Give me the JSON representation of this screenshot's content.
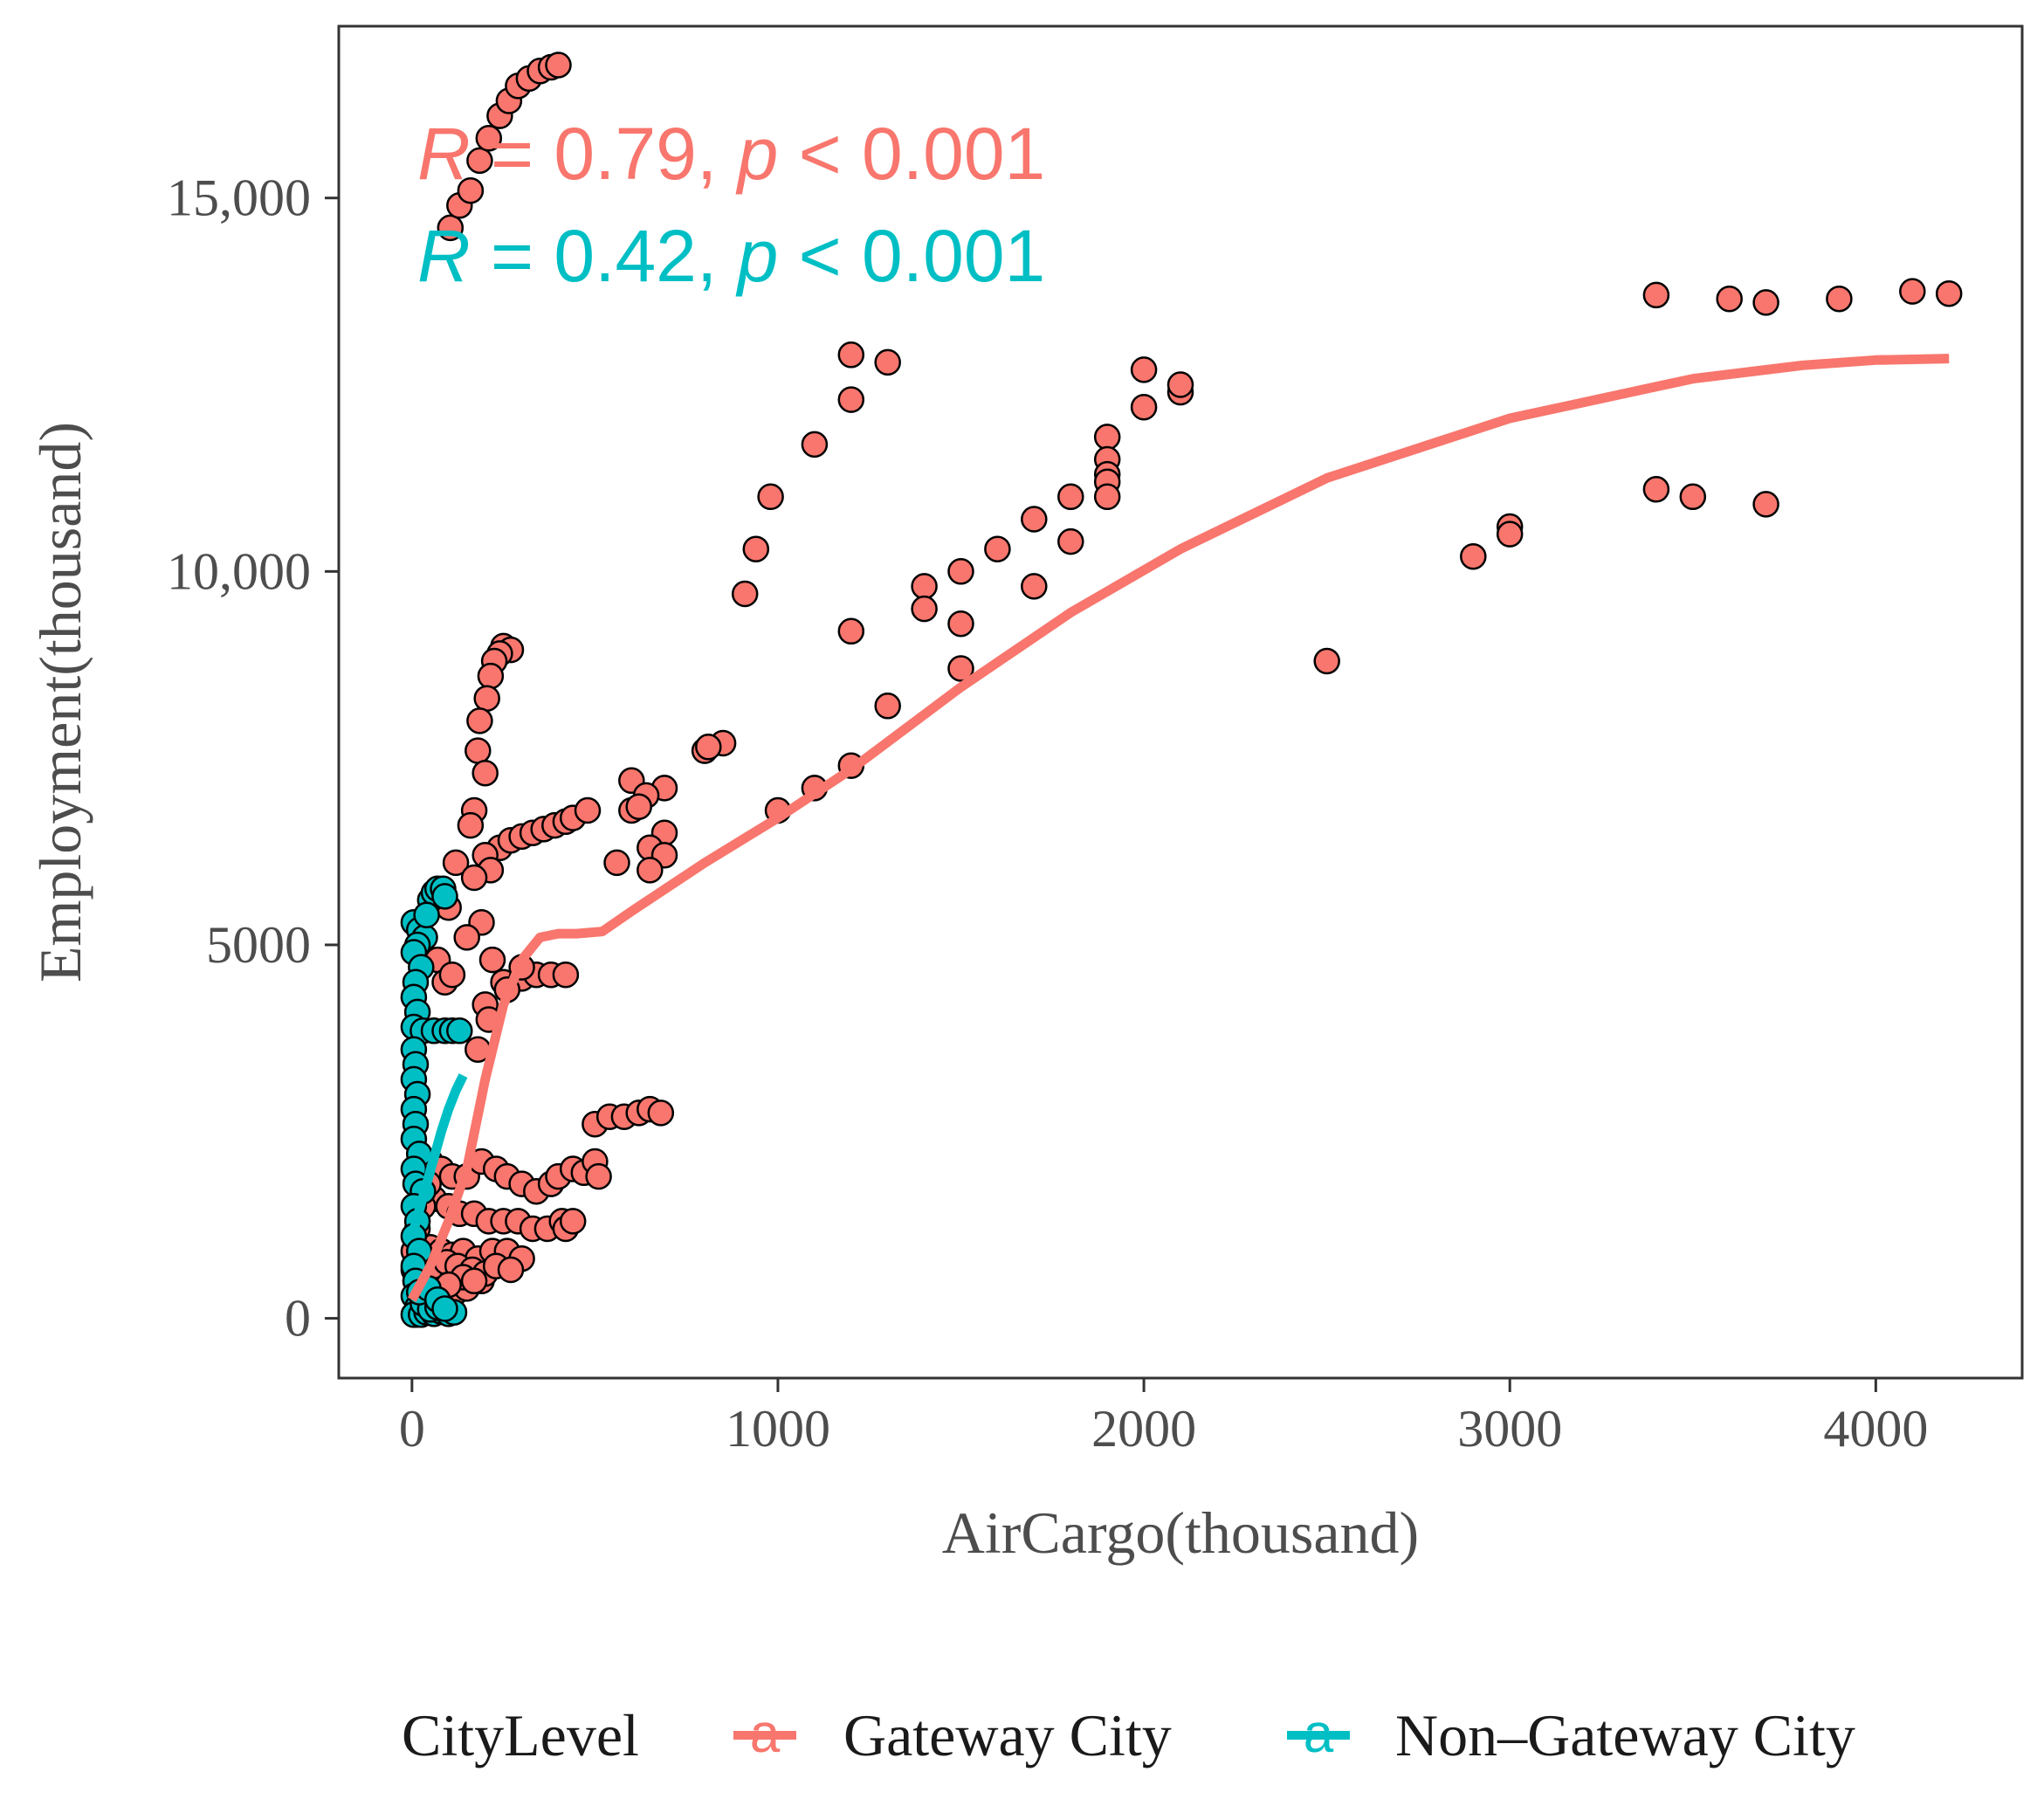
{
  "chart_data": {
    "type": "scatter",
    "title": "",
    "xlabel": "AirCargo(thousand)",
    "ylabel": "Employment(thousand)",
    "xlim": [
      -200,
      4400
    ],
    "ylim": [
      -800,
      17300
    ],
    "xticks": [
      0,
      1000,
      2000,
      3000,
      4000
    ],
    "xtick_labels": [
      "0",
      "1000",
      "2000",
      "3000",
      "4000"
    ],
    "yticks": [
      0,
      5000,
      10000,
      15000
    ],
    "ytick_labels": [
      "0",
      "5000",
      "10,000",
      "15,000"
    ],
    "grid": false,
    "legend": {
      "title": "CityLevel",
      "position": "bottom",
      "entries": [
        "Gateway City",
        "Non–Gateway City"
      ],
      "key_glyph": "a"
    },
    "stats": [
      {
        "series": "Gateway City",
        "R": "0.79",
        "p": "< 0.001",
        "R_symbol": "R",
        "p_symbol": "p",
        "eq": " = ",
        "sep": ", ",
        "color": "#F8766D"
      },
      {
        "series": "Non–Gateway City",
        "R": "0.42",
        "p": "< 0.001",
        "R_symbol": "R",
        "p_symbol": "p",
        "eq": " = ",
        "sep": ", ",
        "color": "#00BFC4"
      }
    ],
    "series": [
      {
        "name": "Gateway City",
        "color": "#F8766D",
        "points": [
          [
            105,
            14600
          ],
          [
            130,
            14900
          ],
          [
            160,
            15100
          ],
          [
            185,
            15500
          ],
          [
            210,
            15800
          ],
          [
            240,
            16100
          ],
          [
            265,
            16300
          ],
          [
            290,
            16500
          ],
          [
            320,
            16600
          ],
          [
            350,
            16700
          ],
          [
            380,
            16750
          ],
          [
            400,
            16780
          ],
          [
            3400,
            13700
          ],
          [
            3600,
            13650
          ],
          [
            3700,
            13600
          ],
          [
            3900,
            13650
          ],
          [
            4100,
            13750
          ],
          [
            4200,
            13720
          ],
          [
            1200,
            12900
          ],
          [
            1300,
            12800
          ],
          [
            1200,
            12300
          ],
          [
            1100,
            11700
          ],
          [
            980,
            11000
          ],
          [
            940,
            10300
          ],
          [
            910,
            9700
          ],
          [
            2000,
            12700
          ],
          [
            2000,
            12200
          ],
          [
            2100,
            12400
          ],
          [
            2100,
            12500
          ],
          [
            1900,
            11800
          ],
          [
            1900,
            11500
          ],
          [
            1900,
            11300
          ],
          [
            1900,
            11200
          ],
          [
            1900,
            11000
          ],
          [
            1800,
            11000
          ],
          [
            1700,
            10700
          ],
          [
            1800,
            10400
          ],
          [
            1600,
            10300
          ],
          [
            1500,
            10000
          ],
          [
            1700,
            9800
          ],
          [
            1400,
            9800
          ],
          [
            1400,
            9500
          ],
          [
            1500,
            9300
          ],
          [
            1200,
            9200
          ],
          [
            1500,
            8700
          ],
          [
            1300,
            8200
          ],
          [
            3400,
            11100
          ],
          [
            3500,
            11000
          ],
          [
            3700,
            10900
          ],
          [
            2900,
            10200
          ],
          [
            3000,
            10600
          ],
          [
            3000,
            10500
          ],
          [
            2500,
            8800
          ],
          [
            250,
            9000
          ],
          [
            270,
            8950
          ],
          [
            240,
            8900
          ],
          [
            225,
            8800
          ],
          [
            215,
            8600
          ],
          [
            205,
            8300
          ],
          [
            185,
            8000
          ],
          [
            180,
            7600
          ],
          [
            200,
            7300
          ],
          [
            800,
            7600
          ],
          [
            850,
            7700
          ],
          [
            810,
            7650
          ],
          [
            1200,
            7400
          ],
          [
            1100,
            7100
          ],
          [
            1000,
            6800
          ],
          [
            600,
            7200
          ],
          [
            690,
            7100
          ],
          [
            640,
            7000
          ],
          [
            600,
            6800
          ],
          [
            620,
            6850
          ],
          [
            690,
            6500
          ],
          [
            650,
            6300
          ],
          [
            690,
            6200
          ],
          [
            560,
            6100
          ],
          [
            650,
            6000
          ],
          [
            240,
            6300
          ],
          [
            270,
            6400
          ],
          [
            300,
            6450
          ],
          [
            330,
            6500
          ],
          [
            360,
            6550
          ],
          [
            390,
            6600
          ],
          [
            420,
            6650
          ],
          [
            440,
            6700
          ],
          [
            480,
            6800
          ],
          [
            170,
            6800
          ],
          [
            160,
            6600
          ],
          [
            200,
            6200
          ],
          [
            215,
            6000
          ],
          [
            120,
            6100
          ],
          [
            170,
            5900
          ],
          [
            100,
            5500
          ],
          [
            190,
            5300
          ],
          [
            150,
            5100
          ],
          [
            220,
            4800
          ],
          [
            250,
            4500
          ],
          [
            300,
            4550
          ],
          [
            340,
            4600
          ],
          [
            380,
            4600
          ],
          [
            420,
            4600
          ],
          [
            260,
            4400
          ],
          [
            300,
            4700
          ],
          [
            70,
            4800
          ],
          [
            90,
            4500
          ],
          [
            110,
            4600
          ],
          [
            200,
            4200
          ],
          [
            210,
            4000
          ],
          [
            180,
            3600
          ],
          [
            500,
            2600
          ],
          [
            540,
            2700
          ],
          [
            580,
            2700
          ],
          [
            620,
            2750
          ],
          [
            650,
            2800
          ],
          [
            680,
            2750
          ],
          [
            50,
            2100
          ],
          [
            80,
            2000
          ],
          [
            110,
            1900
          ],
          [
            150,
            1900
          ],
          [
            190,
            2100
          ],
          [
            230,
            2000
          ],
          [
            260,
            1900
          ],
          [
            300,
            1800
          ],
          [
            340,
            1700
          ],
          [
            380,
            1800
          ],
          [
            400,
            1900
          ],
          [
            440,
            2000
          ],
          [
            470,
            1950
          ],
          [
            500,
            2100
          ],
          [
            510,
            1900
          ],
          [
            60,
            1600
          ],
          [
            100,
            1500
          ],
          [
            130,
            1400
          ],
          [
            170,
            1400
          ],
          [
            210,
            1300
          ],
          [
            250,
            1300
          ],
          [
            290,
            1300
          ],
          [
            330,
            1200
          ],
          [
            370,
            1200
          ],
          [
            410,
            1300
          ],
          [
            420,
            1200
          ],
          [
            440,
            1300
          ],
          [
            20,
            1000
          ],
          [
            50,
            950
          ],
          [
            80,
            900
          ],
          [
            110,
            850
          ],
          [
            140,
            900
          ],
          [
            180,
            800
          ],
          [
            220,
            900
          ],
          [
            260,
            900
          ],
          [
            300,
            800
          ],
          [
            10,
            500
          ],
          [
            30,
            400
          ],
          [
            60,
            350
          ],
          [
            90,
            300
          ],
          [
            120,
            350
          ],
          [
            150,
            400
          ],
          [
            190,
            500
          ],
          [
            80,
            600
          ],
          [
            20,
            200
          ],
          [
            10,
            50
          ],
          [
            40,
            100
          ],
          [
            60,
            700
          ],
          [
            95,
            750
          ],
          [
            125,
            700
          ],
          [
            165,
            650
          ],
          [
            200,
            600
          ],
          [
            140,
            550
          ],
          [
            230,
            700
          ],
          [
            270,
            650
          ],
          [
            170,
            500
          ],
          [
            100,
            450
          ],
          [
            50,
            250
          ],
          [
            30,
            150
          ],
          [
            5,
            650
          ],
          [
            5,
            900
          ],
          [
            15,
            1200
          ],
          [
            30,
            1500
          ],
          [
            45,
            1800
          ]
        ]
      },
      {
        "name": "Non–Gateway City",
        "color": "#00BFC4",
        "points": [
          [
            5,
            5300
          ],
          [
            20,
            5200
          ],
          [
            35,
            5100
          ],
          [
            50,
            5600
          ],
          [
            60,
            5700
          ],
          [
            70,
            5750
          ],
          [
            85,
            5750
          ],
          [
            90,
            5650
          ],
          [
            40,
            5400
          ],
          [
            15,
            5000
          ],
          [
            5,
            4900
          ],
          [
            25,
            4700
          ],
          [
            10,
            4500
          ],
          [
            5,
            4300
          ],
          [
            15,
            4100
          ],
          [
            5,
            3900
          ],
          [
            30,
            3850
          ],
          [
            60,
            3850
          ],
          [
            90,
            3850
          ],
          [
            110,
            3850
          ],
          [
            130,
            3850
          ],
          [
            5,
            3600
          ],
          [
            10,
            3400
          ],
          [
            5,
            3200
          ],
          [
            15,
            3000
          ],
          [
            5,
            2800
          ],
          [
            10,
            2600
          ],
          [
            5,
            2400
          ],
          [
            20,
            2200
          ],
          [
            5,
            2000
          ],
          [
            10,
            1800
          ],
          [
            30,
            1700
          ],
          [
            5,
            1500
          ],
          [
            15,
            1300
          ],
          [
            5,
            1100
          ],
          [
            20,
            900
          ],
          [
            5,
            700
          ],
          [
            10,
            500
          ],
          [
            5,
            300
          ],
          [
            15,
            150
          ],
          [
            5,
            50
          ],
          [
            25,
            50
          ],
          [
            40,
            80
          ],
          [
            60,
            60
          ],
          [
            80,
            90
          ],
          [
            100,
            60
          ],
          [
            115,
            80
          ],
          [
            30,
            200
          ],
          [
            50,
            120
          ],
          [
            70,
            150
          ],
          [
            20,
            350
          ],
          [
            45,
            400
          ],
          [
            70,
            250
          ],
          [
            90,
            130
          ]
        ]
      }
    ],
    "smooth_lines": [
      {
        "series": "Gateway City",
        "color": "#F8766D",
        "points": [
          [
            0,
            250
          ],
          [
            50,
            700
          ],
          [
            100,
            1300
          ],
          [
            150,
            2000
          ],
          [
            200,
            3200
          ],
          [
            250,
            4200
          ],
          [
            300,
            4800
          ],
          [
            350,
            5100
          ],
          [
            400,
            5150
          ],
          [
            450,
            5150
          ],
          [
            520,
            5180
          ],
          [
            600,
            5450
          ],
          [
            800,
            6100
          ],
          [
            1000,
            6700
          ],
          [
            1200,
            7350
          ],
          [
            1500,
            8450
          ],
          [
            1800,
            9450
          ],
          [
            2100,
            10300
          ],
          [
            2500,
            11250
          ],
          [
            3000,
            12050
          ],
          [
            3500,
            12580
          ],
          [
            3800,
            12760
          ],
          [
            4000,
            12830
          ],
          [
            4200,
            12850
          ]
        ]
      },
      {
        "series": "Non–Gateway City",
        "color": "#00BFC4",
        "points": [
          [
            0,
            1100
          ],
          [
            20,
            1450
          ],
          [
            40,
            1800
          ],
          [
            60,
            2150
          ],
          [
            80,
            2500
          ],
          [
            100,
            2800
          ],
          [
            120,
            3050
          ],
          [
            140,
            3250
          ]
        ]
      }
    ]
  }
}
